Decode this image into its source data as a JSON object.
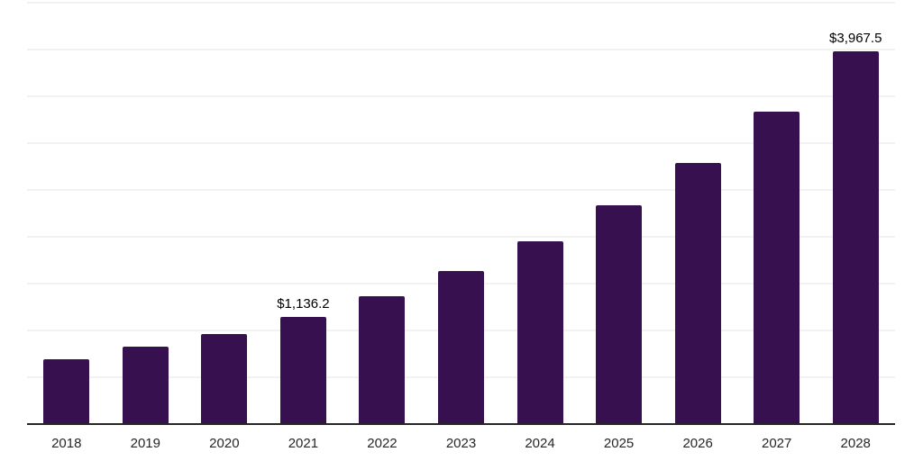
{
  "page": {
    "background": "#ffffff"
  },
  "chart_data": {
    "type": "bar",
    "title": "",
    "xlabel": "",
    "ylabel": "",
    "categories": [
      "2018",
      "2019",
      "2020",
      "2021",
      "2022",
      "2023",
      "2024",
      "2025",
      "2026",
      "2027",
      "2028"
    ],
    "values": [
      680,
      820,
      950,
      1136.2,
      1355,
      1625,
      1940,
      2325,
      2780,
      3325,
      3967.5
    ],
    "annotations": [
      {
        "category": "2021",
        "text": "$1,136.2"
      },
      {
        "category": "2028",
        "text": "$3,967.5"
      }
    ],
    "ylim": [
      0,
      4500
    ],
    "gridline_interval": 500,
    "grid": "horizontal",
    "legend": "none",
    "y_axis_labels": "none",
    "bar_color": "#37114f",
    "axis_line_color": "#262626",
    "gridline_color": "#f2f2f2",
    "tick_label_color": "#262626",
    "annotation_color": "#000000"
  }
}
